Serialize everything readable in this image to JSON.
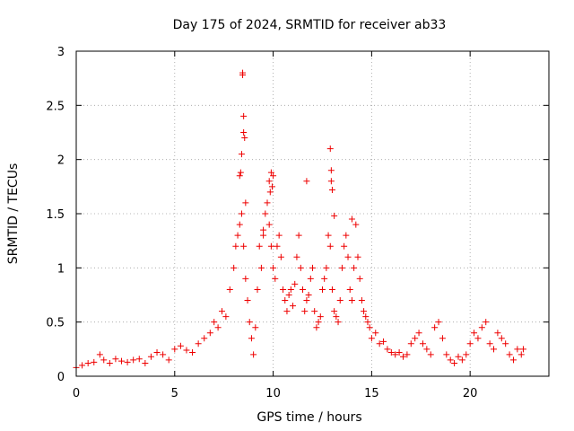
{
  "chart_data": {
    "type": "scatter",
    "title": "Day 175 of 2024, SRMTID for receiver ab33",
    "xlabel": "GPS time / hours",
    "ylabel": "SRMTID / TECUs",
    "xlim": [
      0,
      24
    ],
    "ylim": [
      0,
      3
    ],
    "xticks": [
      "0",
      "5",
      "10",
      "15",
      "20"
    ],
    "yticks": [
      "0",
      "0.5",
      "1",
      "1.5",
      "2",
      "2.5",
      "3"
    ],
    "grid": true,
    "marker": "+",
    "color": "#ee0000",
    "series": [
      {
        "name": "SRMTID",
        "x": [
          0.0,
          0.3,
          0.6,
          0.9,
          1.2,
          1.4,
          1.7,
          2.0,
          2.3,
          2.6,
          2.9,
          3.2,
          3.5,
          3.8,
          4.1,
          4.4,
          4.7,
          5.0,
          5.3,
          5.6,
          5.9,
          6.2,
          6.5,
          6.8,
          7.0,
          7.2,
          7.4,
          7.6,
          7.8,
          8.0,
          8.1,
          8.2,
          8.3,
          8.4,
          8.5,
          8.6,
          8.7,
          8.8,
          8.9,
          9.0,
          9.1,
          9.2,
          9.3,
          9.4,
          9.5,
          9.6,
          9.7,
          9.8,
          9.9,
          10.0,
          10.1,
          10.2,
          10.3,
          10.4,
          10.5,
          10.6,
          10.7,
          10.8,
          10.9,
          11.0,
          11.1,
          11.2,
          11.3,
          11.4,
          11.5,
          11.6,
          11.7,
          11.8,
          11.9,
          12.0,
          12.1,
          12.2,
          12.3,
          12.4,
          12.5,
          12.6,
          12.7,
          12.8,
          12.9,
          13.0,
          13.1,
          13.2,
          13.3,
          13.4,
          13.5,
          13.6,
          13.7,
          13.8,
          13.9,
          14.0,
          14.1,
          14.2,
          14.3,
          14.4,
          14.5,
          14.6,
          14.7,
          14.8,
          14.9,
          15.0,
          15.2,
          15.4,
          15.6,
          15.8,
          16.0,
          16.2,
          16.4,
          16.6,
          16.8,
          17.0,
          17.2,
          17.4,
          17.6,
          17.8,
          18.0,
          18.2,
          18.4,
          18.6,
          18.8,
          19.0,
          19.2,
          19.4,
          19.6,
          19.8,
          20.0,
          20.2,
          20.4,
          20.6,
          20.8,
          21.0,
          21.2,
          21.4,
          21.6,
          21.8,
          22.0,
          22.2,
          22.4,
          22.6,
          22.7,
          8.45,
          8.45,
          8.5,
          8.5,
          8.55,
          8.4,
          12.9,
          12.95,
          12.95,
          13.0,
          9.8,
          9.9,
          9.95,
          10.0,
          9.85,
          11.7,
          8.3,
          8.35,
          8.6,
          13.1,
          14.0,
          9.5
        ],
        "y": [
          0.08,
          0.1,
          0.12,
          0.13,
          0.2,
          0.15,
          0.12,
          0.16,
          0.14,
          0.13,
          0.15,
          0.16,
          0.12,
          0.18,
          0.22,
          0.2,
          0.15,
          0.25,
          0.28,
          0.24,
          0.22,
          0.3,
          0.35,
          0.4,
          0.5,
          0.45,
          0.6,
          0.55,
          0.8,
          1.0,
          1.2,
          1.3,
          1.4,
          1.5,
          1.2,
          0.9,
          0.7,
          0.5,
          0.35,
          0.2,
          0.45,
          0.8,
          1.2,
          1.0,
          1.3,
          1.5,
          1.6,
          1.4,
          1.2,
          1.0,
          0.9,
          1.2,
          1.3,
          1.1,
          0.8,
          0.7,
          0.6,
          0.75,
          0.8,
          0.65,
          0.85,
          1.1,
          1.3,
          1.0,
          0.8,
          0.6,
          0.7,
          0.75,
          0.9,
          1.0,
          0.6,
          0.45,
          0.5,
          0.55,
          0.8,
          0.9,
          1.0,
          1.3,
          1.2,
          0.8,
          0.6,
          0.55,
          0.5,
          0.7,
          1.0,
          1.2,
          1.3,
          1.1,
          0.8,
          0.7,
          1.0,
          1.4,
          1.1,
          0.9,
          0.7,
          0.6,
          0.55,
          0.5,
          0.45,
          0.35,
          0.4,
          0.3,
          0.32,
          0.25,
          0.22,
          0.2,
          0.22,
          0.18,
          0.2,
          0.3,
          0.35,
          0.4,
          0.3,
          0.25,
          0.2,
          0.45,
          0.5,
          0.35,
          0.2,
          0.15,
          0.12,
          0.18,
          0.15,
          0.2,
          0.3,
          0.4,
          0.35,
          0.45,
          0.5,
          0.3,
          0.25,
          0.4,
          0.35,
          0.3,
          0.2,
          0.15,
          0.25,
          0.2,
          0.25,
          2.8,
          2.78,
          2.4,
          2.25,
          2.2,
          2.05,
          2.1,
          1.9,
          1.8,
          1.72,
          1.8,
          1.88,
          1.75,
          1.85,
          1.7,
          1.8,
          1.85,
          1.88,
          1.6,
          1.48,
          1.45,
          1.35
        ]
      }
    ]
  }
}
